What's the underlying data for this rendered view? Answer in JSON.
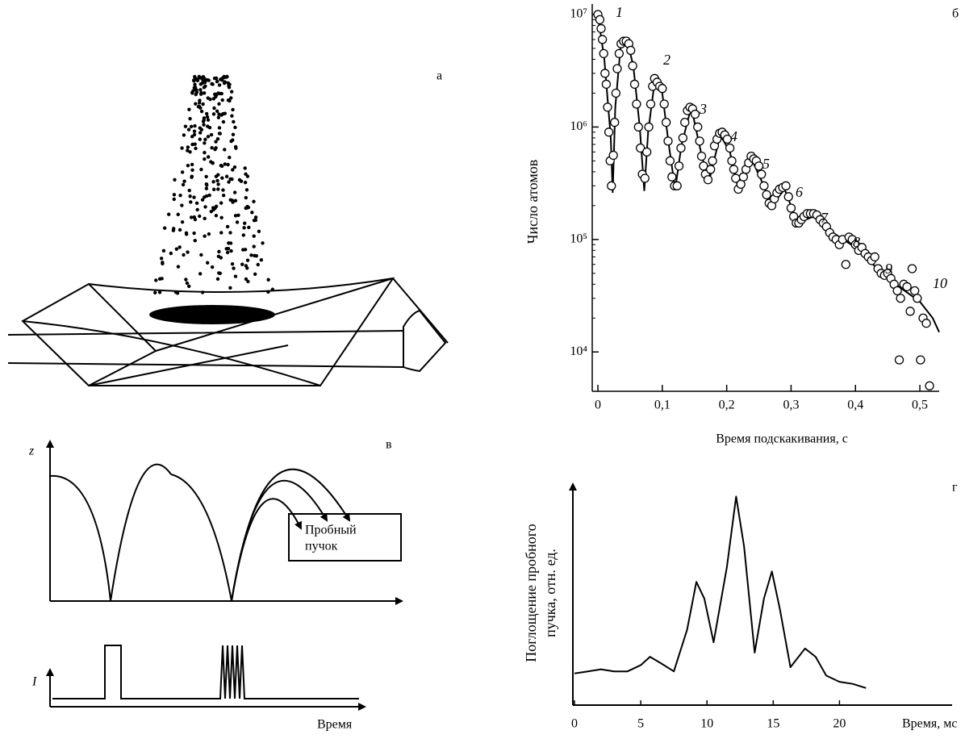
{
  "panel_labels": [
    "а",
    "б",
    "в",
    "г"
  ],
  "diagram": {
    "z_label": "z",
    "i_label": "I",
    "probe_label": [
      "Пробный",
      "пучок"
    ],
    "time_label": "Время"
  },
  "chart_data": [
    {
      "type": "scatter",
      "log_y": true,
      "ylabel": "Число атомов",
      "xlabel": "Время подскакивания, с",
      "annotations": [
        "1",
        "2",
        "3",
        "4",
        "5",
        "6",
        "7",
        "8",
        "9",
        "10"
      ],
      "xlim": [
        -0.0088,
        0.53
      ],
      "ylim": [
        4470,
        12400000
      ],
      "xticks": [
        0,
        {
          "value": 0.1,
          "label": "0,1"
        },
        {
          "value": 0.2,
          "label": "0,2"
        },
        {
          "value": 0.3,
          "label": "0,3"
        },
        {
          "value": 0.4,
          "label": "0,4"
        },
        {
          "value": 0.5,
          "label": "0,5"
        }
      ],
      "yticks": [
        {
          "value": 10000,
          "label": "10⁴"
        },
        {
          "value": 100000,
          "label": "10⁵"
        },
        {
          "value": 1000000,
          "label": "10⁶"
        },
        {
          "value": 10000000,
          "label": "10⁷"
        }
      ],
      "points": {
        "x": [
          0.0,
          0.003,
          0.005,
          0.007,
          0.009,
          0.011,
          0.013,
          0.015,
          0.017,
          0.019,
          0.021,
          0.024,
          0.026,
          0.028,
          0.03,
          0.033,
          0.036,
          0.04,
          0.044,
          0.048,
          0.051,
          0.054,
          0.057,
          0.06,
          0.063,
          0.066,
          0.069,
          0.073,
          0.076,
          0.079,
          0.082,
          0.085,
          0.088,
          0.092,
          0.096,
          0.1,
          0.103,
          0.106,
          0.109,
          0.112,
          0.115,
          0.119,
          0.123,
          0.126,
          0.129,
          0.132,
          0.135,
          0.139,
          0.143,
          0.147,
          0.151,
          0.155,
          0.158,
          0.161,
          0.164,
          0.167,
          0.171,
          0.175,
          0.178,
          0.181,
          0.185,
          0.189,
          0.193,
          0.197,
          0.201,
          0.205,
          0.208,
          0.211,
          0.214,
          0.218,
          0.222,
          0.226,
          0.23,
          0.234,
          0.238,
          0.242,
          0.246,
          0.25,
          0.254,
          0.258,
          0.262,
          0.266,
          0.27,
          0.274,
          0.278,
          0.282,
          0.287,
          0.292,
          0.296,
          0.3,
          0.304,
          0.308,
          0.312,
          0.316,
          0.32,
          0.325,
          0.33,
          0.335,
          0.34,
          0.345,
          0.35,
          0.355,
          0.36,
          0.365,
          0.37,
          0.375,
          0.38,
          0.385,
          0.39,
          0.395,
          0.4,
          0.405,
          0.41,
          0.415,
          0.42,
          0.425,
          0.43,
          0.435,
          0.44,
          0.445,
          0.45,
          0.455,
          0.46,
          0.465,
          0.468,
          0.47,
          0.475,
          0.48,
          0.485,
          0.488,
          0.492,
          0.496,
          0.501,
          0.505,
          0.51,
          0.515
        ],
        "values": [
          10000000,
          9000000,
          7500000,
          6000000,
          4500000,
          3000000,
          2400000,
          1500000,
          900000,
          500000,
          300000,
          560000,
          1100000,
          2000000,
          3300000,
          4500000,
          5500000,
          5800000,
          5800000,
          5500000,
          4800000,
          3500000,
          2400000,
          1600000,
          1000000,
          650000,
          380000,
          350000,
          600000,
          1000000,
          1600000,
          2300000,
          2700000,
          2500000,
          2300000,
          2200000,
          1600000,
          1100000,
          750000,
          500000,
          360000,
          300000,
          300000,
          450000,
          650000,
          800000,
          1100000,
          1400000,
          1500000,
          1450000,
          1300000,
          1000000,
          750000,
          550000,
          450000,
          380000,
          340000,
          420000,
          500000,
          680000,
          780000,
          880000,
          900000,
          850000,
          780000,
          650000,
          500000,
          420000,
          350000,
          280000,
          310000,
          360000,
          420000,
          480000,
          550000,
          520000,
          500000,
          450000,
          380000,
          300000,
          250000,
          210000,
          200000,
          230000,
          260000,
          280000,
          290000,
          300000,
          240000,
          190000,
          160000,
          140000,
          140000,
          150000,
          160000,
          170000,
          170000,
          170000,
          165000,
          150000,
          140000,
          130000,
          115000,
          105000,
          100000,
          90000,
          100000,
          60000,
          105000,
          100000,
          90000,
          80000,
          85000,
          75000,
          70000,
          65000,
          70000,
          55000,
          50000,
          48000,
          50000,
          45000,
          40000,
          35000,
          8500,
          30000,
          40000,
          38000,
          23000,
          55000,
          35000,
          30000,
          8500,
          20000,
          18000,
          5000
        ]
      },
      "curve": {
        "x": [
          0,
          0.01,
          0.02,
          0.023,
          0.027,
          0.035,
          0.045,
          0.055,
          0.065,
          0.072,
          0.078,
          0.088,
          0.1,
          0.11,
          0.12,
          0.13,
          0.145,
          0.16,
          0.172,
          0.19,
          0.205,
          0.218,
          0.24,
          0.26,
          0.27,
          0.29,
          0.31,
          0.335,
          0.36,
          0.4,
          0.45,
          0.5,
          0.52,
          0.53
        ],
        "values": [
          10000000,
          4000000,
          800000,
          260000,
          1500000,
          5000000,
          6000000,
          3500000,
          1000000,
          270000,
          900000,
          2500000,
          2000000,
          700000,
          280000,
          700000,
          1500000,
          600000,
          320000,
          850000,
          600000,
          280000,
          500000,
          280000,
          200000,
          280000,
          140000,
          160000,
          120000,
          85000,
          45000,
          28000,
          20000,
          15000
        ]
      }
    },
    {
      "type": "line",
      "ylabel": [
        "Поглощение пробного",
        "пучка, отн. ед."
      ],
      "xlabel": "Время, мс",
      "xlim": [
        0,
        28.5
      ],
      "ylim": [
        0,
        1
      ],
      "xticks": [
        0,
        5,
        10,
        15,
        20
      ],
      "x": [
        0,
        1,
        2,
        3,
        4,
        5,
        5.7,
        6.5,
        7.5,
        8.5,
        9.2,
        9.8,
        10.5,
        11.5,
        12.2,
        12.8,
        13.6,
        14.3,
        14.9,
        15.5,
        16.3,
        17.4,
        18.2,
        19,
        20,
        21,
        22
      ],
      "values": [
        0.09,
        0.1,
        0.11,
        0.1,
        0.1,
        0.13,
        0.17,
        0.14,
        0.1,
        0.3,
        0.53,
        0.45,
        0.24,
        0.6,
        0.94,
        0.7,
        0.19,
        0.45,
        0.58,
        0.4,
        0.12,
        0.21,
        0.17,
        0.08,
        0.05,
        0.04,
        0.02
      ]
    }
  ]
}
